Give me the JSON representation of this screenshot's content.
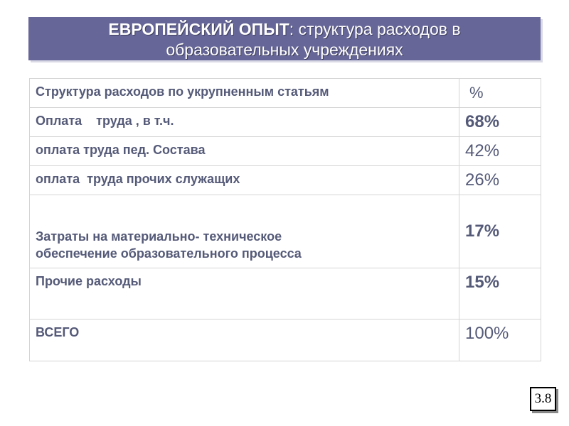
{
  "title": {
    "bold_part": "ЕВРОПЕЙСКИЙ ОПЫТ",
    "rest_line1": ": структура расходов в",
    "line2": "образовательных учреждениях"
  },
  "table": {
    "header": {
      "label": "Структура расходов по укрупненным статьям",
      "value": "%"
    },
    "rows": [
      {
        "label": "Оплата    труда , в т.ч.",
        "value": "68%",
        "value_bold": true
      },
      {
        "label": "оплата труда пед. Состава",
        "value": "42%",
        "value_bold": false
      },
      {
        "label": "оплата  труда прочих служащих",
        "value": "26%",
        "value_bold": false
      },
      {
        "label_line1": "Затраты на материально- техническое",
        "label_line2": "обеспечение образовательного процесса",
        "value": "17%",
        "value_bold": true
      },
      {
        "label": "Прочие расходы",
        "value": "15%",
        "value_bold": true
      },
      {
        "label": "ВСЕГО",
        "value": "100%",
        "value_bold": false
      }
    ]
  },
  "page_number": "3.8",
  "colors": {
    "banner_bg": "#666699",
    "banner_text": "#ffffff",
    "table_text": "#555a78",
    "table_border": "#d4d4d4"
  }
}
